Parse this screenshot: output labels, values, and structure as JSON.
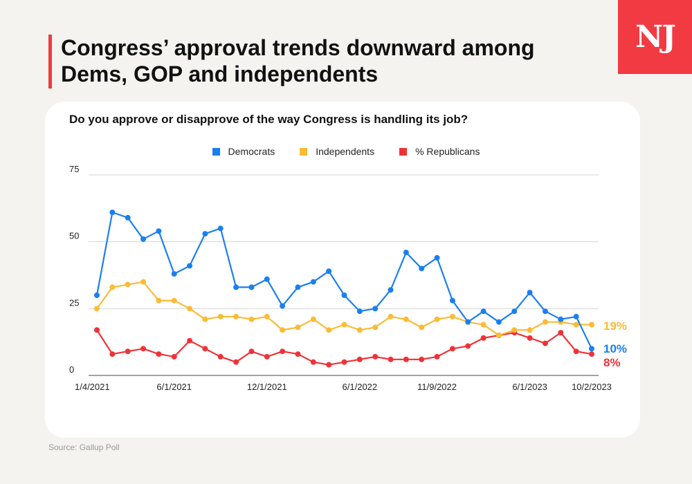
{
  "headline": "Congress’ approval trends downward among Dems, GOP and independents",
  "logo": "NJ",
  "source": "Source: Gallup Poll",
  "colors": {
    "democrats": "#1a7ff0",
    "independents": "#fbbb35",
    "republicans": "#ef3238"
  },
  "chart_data": {
    "type": "line",
    "title": "Do you approve or disapprove of the way Congress is handling its job?",
    "xlabel": "",
    "ylabel": "",
    "ylim": [
      0,
      75
    ],
    "yticks": [
      "0",
      "25",
      "50",
      "75"
    ],
    "xticks": [
      {
        "label": "1/4/2021",
        "index": 0
      },
      {
        "label": "6/1/2021",
        "index": 5
      },
      {
        "label": "12/1/2021",
        "index": 11
      },
      {
        "label": "6/1/2022",
        "index": 17
      },
      {
        "label": "11/9/2022",
        "index": 22
      },
      {
        "label": "6/1/2023",
        "index": 28
      },
      {
        "label": "10/2/2023",
        "index": 32
      }
    ],
    "grid": true,
    "legend_position": "top-center",
    "series": [
      {
        "name": "Democrats",
        "color": "#1a7ff0",
        "end_label": "10%",
        "values": [
          30,
          61,
          59,
          51,
          54,
          38,
          41,
          53,
          55,
          33,
          33,
          36,
          26,
          33,
          35,
          39,
          30,
          24,
          25,
          32,
          46,
          40,
          44,
          28,
          20,
          24,
          20,
          24,
          31,
          24,
          21,
          22,
          10
        ]
      },
      {
        "name": "Independents",
        "color": "#fbbb35",
        "end_label": "19%",
        "values": [
          25,
          33,
          34,
          35,
          28,
          28,
          25,
          21,
          22,
          22,
          21,
          22,
          17,
          18,
          21,
          17,
          19,
          17,
          18,
          22,
          21,
          18,
          21,
          22,
          20,
          19,
          15,
          17,
          17,
          20,
          20,
          19,
          19
        ]
      },
      {
        "name": "% Republicans",
        "color": "#ef3238",
        "end_label": "8%",
        "values": [
          17,
          8,
          9,
          10,
          8,
          7,
          13,
          10,
          7,
          5,
          9,
          7,
          9,
          8,
          5,
          4,
          5,
          6,
          7,
          6,
          6,
          6,
          7,
          10,
          11,
          14,
          15,
          16,
          14,
          12,
          16,
          9,
          8
        ]
      }
    ]
  }
}
